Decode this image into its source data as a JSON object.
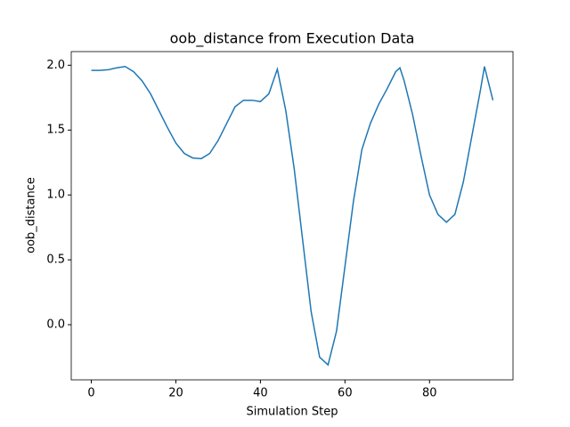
{
  "chart_data": {
    "type": "line",
    "title": "oob_distance from Execution Data",
    "x_label": "Simulation Step",
    "y_label": "oob_distance",
    "x": [
      0,
      2,
      4,
      6,
      8,
      10,
      12,
      14,
      16,
      18,
      20,
      22,
      24,
      26,
      28,
      30,
      32,
      34,
      36,
      38,
      40,
      42,
      44,
      46,
      48,
      50,
      52,
      54,
      56,
      58,
      60,
      62,
      64,
      66,
      68,
      70,
      72,
      73,
      74,
      76,
      78,
      80,
      82,
      84,
      86,
      88,
      90,
      92,
      93,
      95
    ],
    "series": [
      {
        "name": "oob_distance",
        "color": "#1f77b4",
        "values": [
          1.96,
          1.96,
          1.965,
          1.98,
          1.99,
          1.95,
          1.88,
          1.78,
          1.65,
          1.52,
          1.4,
          1.32,
          1.285,
          1.28,
          1.32,
          1.42,
          1.55,
          1.68,
          1.73,
          1.73,
          1.72,
          1.78,
          1.97,
          1.65,
          1.2,
          0.65,
          0.1,
          -0.25,
          -0.31,
          -0.05,
          0.45,
          0.95,
          1.35,
          1.55,
          1.7,
          1.82,
          1.95,
          1.98,
          1.88,
          1.62,
          1.3,
          1.0,
          0.85,
          0.79,
          0.85,
          1.1,
          1.45,
          1.8,
          1.99,
          1.73
        ]
      }
    ],
    "xlim": [
      -4.75,
      99.75
    ],
    "ylim": [
      -0.425,
      2.105
    ],
    "xticks": [
      0,
      20,
      40,
      60,
      80
    ],
    "yticks": [
      {
        "value": 0,
        "label": "0.0"
      },
      0.5,
      {
        "value": 1,
        "label": "1.0"
      },
      1.5,
      {
        "value": 2,
        "label": "2.0"
      }
    ],
    "grid": false
  }
}
